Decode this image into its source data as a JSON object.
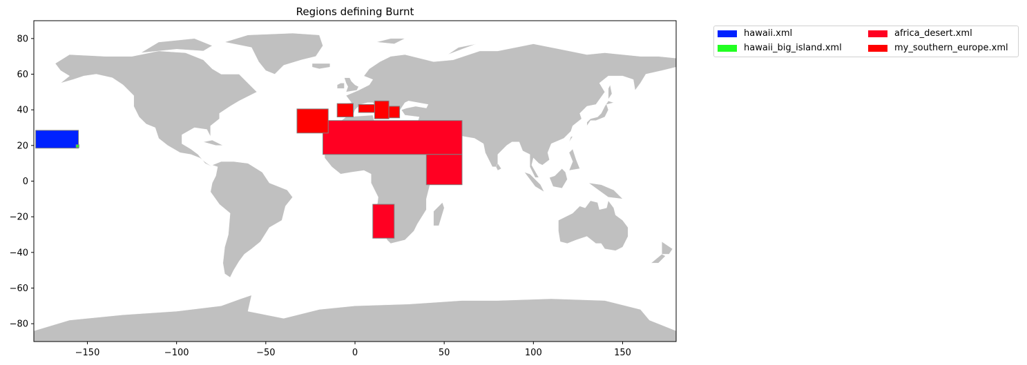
{
  "title": "Regions defining Burnt",
  "map": {
    "extent": {
      "lon": [
        -180,
        180
      ],
      "lat": [
        -90,
        90
      ]
    },
    "xticks": [
      -150,
      -100,
      -50,
      0,
      50,
      100,
      150
    ],
    "yticks": [
      -80,
      -60,
      -40,
      -20,
      0,
      20,
      40,
      60,
      80
    ],
    "xtick_labels": [
      "−150",
      "−100",
      "−50",
      "0",
      "50",
      "100",
      "150"
    ],
    "ytick_labels": [
      "−80",
      "−60",
      "−40",
      "−20",
      "0",
      "20",
      "40",
      "60",
      "80"
    ],
    "land_color": "#c0c0c0",
    "background_color": "#ffffff"
  },
  "legend": {
    "placement": "outside-top-right",
    "items": [
      {
        "label": "hawaii.xml",
        "color": "#0000ff"
      },
      {
        "label": "hawaii_big_island.xml",
        "color": "#00ff00"
      },
      {
        "label": "africa_desert.xml",
        "color": "#ff0014"
      },
      {
        "label": "my_southern_europe.xml",
        "color": "#ff0000"
      }
    ]
  },
  "regions": [
    {
      "name": "hawaii",
      "color": "#0022ff",
      "boxes": [
        [
          -179,
          18.5,
          -155,
          28.5
        ]
      ]
    },
    {
      "name": "hawaii_big_island",
      "color": "#22ff22",
      "boxes": [
        [
          -156.3,
          18.8,
          -154.7,
          20.4
        ]
      ]
    },
    {
      "name": "africa_desert",
      "color": "#ff0022",
      "boxes": [
        [
          -18,
          15,
          60,
          34
        ],
        [
          40,
          -2,
          60,
          15
        ],
        [
          10,
          -32,
          22,
          -13
        ]
      ]
    },
    {
      "name": "my_southern_europe",
      "color": "#ff0000",
      "boxes": [
        [
          -32.5,
          27,
          -15,
          40.5
        ],
        [
          -10,
          36,
          -1,
          43.5
        ],
        [
          2,
          38.5,
          11,
          43
        ],
        [
          11,
          35,
          19,
          45
        ],
        [
          19,
          35.5,
          25,
          42
        ]
      ]
    }
  ]
}
